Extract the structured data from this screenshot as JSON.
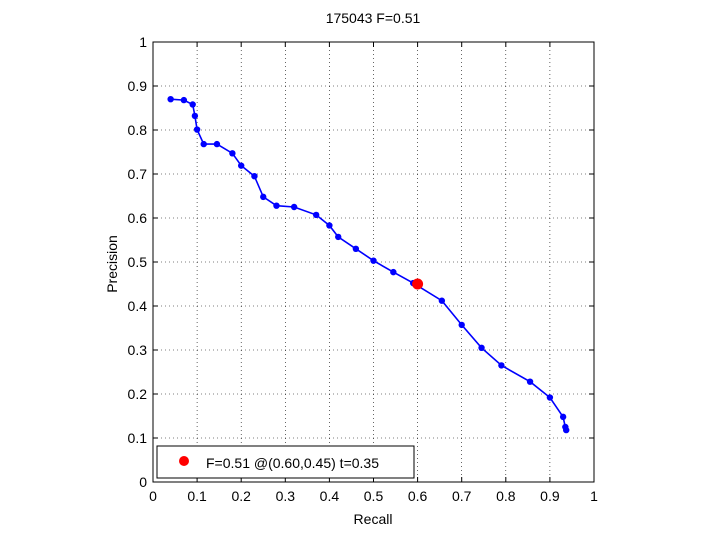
{
  "chart_data": {
    "type": "line",
    "title": "175043 F=0.51",
    "xlabel": "Recall",
    "ylabel": "Precision",
    "xlim": [
      0,
      1
    ],
    "ylim": [
      0,
      1
    ],
    "grid": true,
    "xticks": [
      "0",
      "0.1",
      "0.2",
      "0.3",
      "0.4",
      "0.5",
      "0.6",
      "0.7",
      "0.8",
      "0.9",
      "1"
    ],
    "yticks": [
      "0",
      "0.1",
      "0.2",
      "0.3",
      "0.4",
      "0.5",
      "0.6",
      "0.7",
      "0.8",
      "0.9",
      "1"
    ],
    "series": [
      {
        "color": "#0000ff",
        "x": [
          0.04,
          0.07,
          0.09,
          0.095,
          0.1,
          0.115,
          0.145,
          0.18,
          0.2,
          0.23,
          0.25,
          0.28,
          0.32,
          0.37,
          0.4,
          0.42,
          0.46,
          0.5,
          0.545,
          0.59,
          0.655,
          0.7,
          0.745,
          0.79,
          0.855,
          0.9,
          0.93,
          0.935,
          0.937
        ],
        "y": [
          0.87,
          0.868,
          0.858,
          0.832,
          0.801,
          0.768,
          0.768,
          0.747,
          0.719,
          0.695,
          0.648,
          0.628,
          0.625,
          0.607,
          0.583,
          0.557,
          0.53,
          0.503,
          0.477,
          0.452,
          0.412,
          0.357,
          0.305,
          0.265,
          0.228,
          0.192,
          0.148,
          0.125,
          0.118
        ]
      }
    ],
    "best_point": {
      "x": 0.6,
      "y": 0.45,
      "color": "#ff0000"
    },
    "legend": {
      "position": "bottom-left",
      "label": "F=0.51 @(0.60,0.45) t=0.35"
    }
  }
}
